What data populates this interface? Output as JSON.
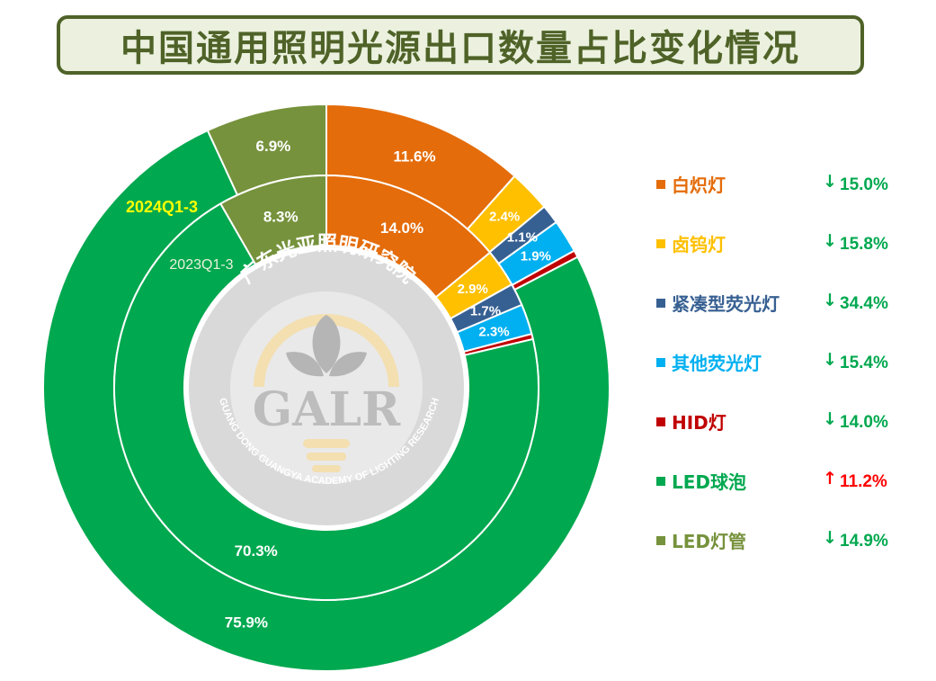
{
  "title": "中国通用照明光源出口数量占比变化情况",
  "colors": {
    "incandescent": "#e46c0a",
    "halogen": "#ffc000",
    "cfl": "#376092",
    "other_fl": "#00b0f0",
    "hid": "#c00000",
    "led_bulb": "#00a84f",
    "led_tube": "#76923c",
    "up": "#ff0000",
    "down": "#00a84f",
    "outer_label": "#ffff00",
    "inner_label": "#ebf1de"
  },
  "watermark": {
    "chinese": "广东光亚照明研究院",
    "acronym": "GALR",
    "english": "GUANG DONG GUANGYA ACADEMY OF LIGHTING RESEARCH"
  },
  "chart_data": {
    "type": "pie",
    "variant": "doughnut",
    "categories": [
      "白炽灯",
      "卤钨灯",
      "紧凑型荧光灯",
      "其他荧光灯",
      "HID灯",
      "LED球泡",
      "LED灯管"
    ],
    "series": [
      {
        "name": "2024Q1-3",
        "ring": "outer",
        "values": [
          11.6,
          2.4,
          1.1,
          1.9,
          0.4,
          75.9,
          6.9
        ],
        "labels": [
          "11.6%",
          "2.4%",
          "1.1%",
          "1.9%",
          "",
          "75.9%",
          "6.9%"
        ]
      },
      {
        "name": "2023Q1-3",
        "ring": "inner",
        "values": [
          14.0,
          2.9,
          1.7,
          2.3,
          0.4,
          70.3,
          8.3
        ],
        "labels": [
          "14.0%",
          "2.9%",
          "1.7%",
          "2.3%",
          "",
          "70.3%",
          "8.3%"
        ]
      }
    ],
    "legend": {
      "position": "right",
      "items": [
        {
          "label": "白炽灯",
          "arrow": "↓",
          "change": "15.0%",
          "direction": "down"
        },
        {
          "label": "卤钨灯",
          "arrow": "↓",
          "change": "15.8%",
          "direction": "down"
        },
        {
          "label": "紧凑型荧光灯",
          "arrow": "↓",
          "change": "34.4%",
          "direction": "down"
        },
        {
          "label": "其他荧光灯",
          "arrow": "↓",
          "change": "15.4%",
          "direction": "down"
        },
        {
          "label": "HID灯",
          "arrow": "↓",
          "change": "14.0%",
          "direction": "down"
        },
        {
          "label": "LED球泡",
          "arrow": "↑",
          "change": "11.2%",
          "direction": "up"
        },
        {
          "label": "LED灯管",
          "arrow": "↓",
          "change": "14.9%",
          "direction": "down"
        }
      ]
    }
  }
}
